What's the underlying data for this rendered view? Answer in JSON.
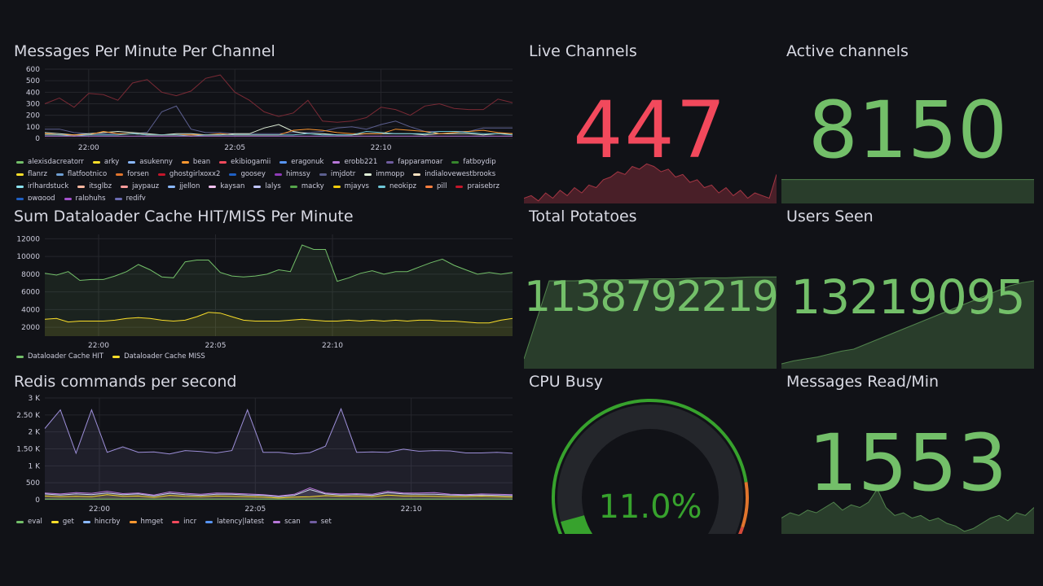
{
  "panels": {
    "messages": {
      "title": "Messages Per Minute Per Channel"
    },
    "cache": {
      "title": "Sum Dataloader Cache HIT/MISS Per Minute"
    },
    "redis": {
      "title": "Redis commands per second"
    },
    "live": {
      "title": "Live Channels",
      "value": "447",
      "color": "#f2495c"
    },
    "active": {
      "title": "Active channels",
      "value": "8150",
      "color": "#73bf69"
    },
    "potatoes": {
      "title": "Total Potatoes",
      "value": "1138792219",
      "color": "#73bf69"
    },
    "users": {
      "title": "Users Seen",
      "value": "13219095",
      "color": "#73bf69"
    },
    "cpu": {
      "title": "CPU Busy",
      "value": "11.0%",
      "percent": 11.0,
      "color": "#37872d"
    },
    "msgread": {
      "title": "Messages Read/Min",
      "value": "1553",
      "color": "#73bf69"
    }
  },
  "chart_data": [
    {
      "id": "messages",
      "type": "line",
      "title": "Messages Per Minute Per Channel",
      "x_ticks": [
        "22:00",
        "22:05",
        "22:10"
      ],
      "x_start_min": -1.5,
      "x_step_min": 0.5,
      "ylim": [
        0,
        600
      ],
      "y_ticks": [
        "0",
        "100",
        "200",
        "300",
        "400",
        "500",
        "600"
      ],
      "legend": [
        [
          "alexisdacreatorr",
          "#73bf69"
        ],
        [
          "arky",
          "#fade2a"
        ],
        [
          "asukenny",
          "#8ab8ff"
        ],
        [
          "bean",
          "#ff9830"
        ],
        [
          "ekibiogamii",
          "#f2495c"
        ],
        [
          "eragonuk",
          "#5794f2"
        ],
        [
          "erobb221",
          "#b877d9"
        ],
        [
          "fapparamoar",
          "#705da0"
        ],
        [
          "fatboydip",
          "#37872d"
        ],
        [
          "flanrz",
          "#fade2a"
        ],
        [
          "flatfootnico",
          "#6e9fd3"
        ],
        [
          "forsen",
          "#e0752d"
        ],
        [
          "ghostgirlxoxx2",
          "#c4162a"
        ],
        [
          "goosey",
          "#1f60c4"
        ],
        [
          "himssy",
          "#8f3bb8"
        ],
        [
          "imjdotr",
          "#5c5f8f"
        ],
        [
          "immopp",
          "#e0f0d8"
        ],
        [
          "indialovewestbrooks",
          "#fce2c2"
        ],
        [
          "irlhardstuck",
          "#8be3f0"
        ],
        [
          "itsglbz",
          "#ffb8a0"
        ],
        [
          "jaypauz",
          "#ff9c9c"
        ],
        [
          "jjellon",
          "#8ab8ff"
        ],
        [
          "kaysan",
          "#f5c2f0"
        ],
        [
          "lalys",
          "#c0c5ff"
        ],
        [
          "macky",
          "#56a64b"
        ],
        [
          "mjayvs",
          "#f2cc0c"
        ],
        [
          "neokipz",
          "#6ec7d8"
        ],
        [
          "pill",
          "#ff7f3f"
        ],
        [
          "praisebrz",
          "#c4162a"
        ],
        [
          "pwgood",
          "#1f60c4"
        ],
        [
          "ralphuhs",
          "#a352cc"
        ],
        [
          "redify",
          "#6b6bb2"
        ]
      ],
      "series": [
        {
          "name": "ghostgirlxoxx2",
          "color": "#7a2a35",
          "values": [
            300,
            350,
            270,
            390,
            380,
            330,
            480,
            510,
            400,
            370,
            410,
            520,
            550,
            400,
            330,
            230,
            190,
            220,
            330,
            150,
            140,
            150,
            180,
            270,
            250,
            200,
            280,
            300,
            260,
            250,
            250,
            340,
            310
          ]
        },
        {
          "name": "imjdotr",
          "color": "#5c5f8f",
          "values": [
            80,
            80,
            50,
            40,
            40,
            40,
            40,
            50,
            230,
            280,
            80,
            50,
            50,
            40,
            40,
            40,
            40,
            50,
            50,
            60,
            90,
            100,
            80,
            120,
            150,
            100,
            60,
            60,
            60,
            60,
            90,
            90,
            90
          ]
        },
        {
          "name": "immopp",
          "color": "#e0f0d8",
          "values": [
            50,
            40,
            30,
            40,
            50,
            60,
            50,
            40,
            30,
            40,
            40,
            30,
            30,
            40,
            40,
            90,
            120,
            60,
            40,
            40,
            30,
            30,
            40,
            40,
            40,
            40,
            30,
            40,
            40,
            40,
            30,
            40,
            40
          ]
        },
        {
          "name": "bean",
          "color": "#ff9830",
          "values": [
            40,
            30,
            30,
            30,
            60,
            40,
            40,
            30,
            30,
            30,
            30,
            30,
            40,
            30,
            30,
            30,
            30,
            70,
            80,
            70,
            50,
            40,
            40,
            40,
            80,
            70,
            60,
            40,
            50,
            60,
            70,
            50,
            40
          ]
        },
        {
          "name": "neokipz",
          "color": "#6ec7d8",
          "values": [
            30,
            30,
            20,
            30,
            30,
            30,
            40,
            30,
            30,
            30,
            20,
            30,
            30,
            30,
            30,
            30,
            30,
            30,
            40,
            30,
            30,
            30,
            60,
            50,
            40,
            40,
            40,
            60,
            60,
            50,
            40,
            40,
            30
          ]
        },
        {
          "name": "erobb221",
          "color": "#b877d9",
          "values": [
            20,
            20,
            20,
            20,
            20,
            20,
            20,
            20,
            20,
            20,
            20,
            20,
            20,
            20,
            20,
            20,
            20,
            20,
            20,
            20,
            20,
            20,
            20,
            20,
            20,
            20,
            20,
            20,
            20,
            20,
            20,
            20,
            20
          ]
        }
      ]
    },
    {
      "id": "cache",
      "type": "area",
      "title": "Sum Dataloader Cache HIT/MISS Per Minute",
      "x_ticks": [
        "22:00",
        "22:05",
        "22:10"
      ],
      "x_start_min": -2.3,
      "x_step_min": 0.5,
      "ylim": [
        1000,
        12500
      ],
      "y_ticks": [
        "2000",
        "4000",
        "6000",
        "8000",
        "10000",
        "12000"
      ],
      "legend": [
        [
          "Dataloader Cache HIT",
          "#73bf69"
        ],
        [
          "Dataloader Cache MISS",
          "#fade2a"
        ]
      ],
      "series": [
        {
          "name": "Dataloader Cache HIT",
          "color": "#73bf69",
          "values": [
            8100,
            7900,
            8300,
            7300,
            7400,
            7400,
            7800,
            8300,
            9100,
            8500,
            7700,
            7600,
            9400,
            9600,
            9600,
            8200,
            7800,
            7700,
            7800,
            8000,
            8500,
            8300,
            11300,
            10800,
            10800,
            7200,
            7600,
            8100,
            8400,
            8000,
            8300,
            8300,
            8800,
            9300,
            9700,
            9000,
            8500,
            8000,
            8200,
            8000,
            8200
          ]
        },
        {
          "name": "Dataloader Cache MISS",
          "color": "#fade2a",
          "values": [
            2900,
            3000,
            2600,
            2700,
            2700,
            2700,
            2800,
            3000,
            3100,
            3000,
            2800,
            2700,
            2800,
            3200,
            3700,
            3600,
            3200,
            2800,
            2700,
            2700,
            2700,
            2800,
            2900,
            2800,
            2700,
            2700,
            2800,
            2700,
            2800,
            2700,
            2800,
            2700,
            2800,
            2800,
            2700,
            2700,
            2600,
            2500,
            2500,
            2800,
            3000
          ]
        }
      ]
    },
    {
      "id": "redis",
      "type": "area",
      "title": "Redis commands per second",
      "x_ticks": [
        "22:00",
        "22:05",
        "22:10"
      ],
      "x_start_min": -1.75,
      "x_step_min": 0.5,
      "ylim": [
        0,
        3000
      ],
      "y_ticks": [
        "0",
        "500",
        "1 K",
        "1.50 K",
        "2 K",
        "2.50 K",
        "3 K"
      ],
      "legend": [
        [
          "eval",
          "#73bf69"
        ],
        [
          "get",
          "#fade2a"
        ],
        [
          "hincrby",
          "#8ab8ff"
        ],
        [
          "hmget",
          "#ff9830"
        ],
        [
          "incr",
          "#f2495c"
        ],
        [
          "latency|latest",
          "#5794f2"
        ],
        [
          "scan",
          "#b877d9"
        ],
        [
          "set",
          "#705da0"
        ]
      ],
      "series": [
        {
          "name": "set",
          "color": "#9d8fd9",
          "values": [
            2100,
            2650,
            1370,
            2650,
            1400,
            1560,
            1400,
            1410,
            1350,
            1450,
            1420,
            1380,
            1450,
            2650,
            1400,
            1400,
            1350,
            1390,
            1580,
            2680,
            1400,
            1410,
            1400,
            1490,
            1430,
            1450,
            1440,
            1380,
            1380,
            1400,
            1370
          ]
        },
        {
          "name": "scan",
          "color": "#b877d9",
          "values": [
            200,
            170,
            210,
            190,
            250,
            180,
            200,
            140,
            230,
            190,
            160,
            200,
            190,
            170,
            150,
            110,
            160,
            350,
            200,
            170,
            180,
            160,
            250,
            200,
            200,
            210,
            160,
            150,
            170,
            160,
            150
          ]
        },
        {
          "name": "hincrby",
          "color": "#d0d8f0",
          "values": [
            170,
            140,
            170,
            150,
            200,
            150,
            170,
            110,
            190,
            150,
            130,
            160,
            160,
            140,
            130,
            90,
            130,
            300,
            170,
            140,
            150,
            130,
            210,
            170,
            160,
            160,
            140,
            130,
            140,
            130,
            120
          ]
        },
        {
          "name": "get",
          "color": "#fade2a",
          "values": [
            110,
            90,
            100,
            90,
            150,
            100,
            110,
            70,
            130,
            100,
            90,
            110,
            100,
            90,
            80,
            50,
            80,
            90,
            120,
            100,
            100,
            90,
            140,
            110,
            110,
            100,
            90,
            90,
            100,
            90,
            80
          ]
        },
        {
          "name": "eval",
          "color": "#73bf69",
          "values": [
            20,
            20,
            20,
            20,
            20,
            20,
            20,
            20,
            20,
            20,
            20,
            20,
            20,
            20,
            20,
            20,
            20,
            20,
            20,
            20,
            20,
            20,
            20,
            20,
            20,
            20,
            20,
            20,
            20,
            20,
            20
          ]
        }
      ]
    }
  ],
  "sparklines": {
    "live": [
      0.1,
      0.15,
      0.05,
      0.2,
      0.1,
      0.25,
      0.15,
      0.3,
      0.2,
      0.35,
      0.3,
      0.45,
      0.5,
      0.6,
      0.55,
      0.7,
      0.65,
      0.75,
      0.7,
      0.6,
      0.65,
      0.5,
      0.55,
      0.4,
      0.45,
      0.3,
      0.35,
      0.2,
      0.3,
      0.15,
      0.25,
      0.1,
      0.2,
      0.15,
      0.1,
      0.55
    ],
    "active": [
      0.3,
      0.3,
      0.3,
      0.3,
      0.3,
      0.3
    ],
    "potatoes": [
      0.1,
      0.9,
      0.9,
      0.91,
      0.91,
      0.92,
      0.92,
      0.93,
      0.93,
      0.94,
      0.94
    ],
    "users": [
      0.05,
      0.08,
      0.1,
      0.12,
      0.15,
      0.18,
      0.2,
      0.25,
      0.3,
      0.35,
      0.4,
      0.45,
      0.5,
      0.55,
      0.6,
      0.65,
      0.7,
      0.75,
      0.8,
      0.85,
      0.88,
      0.9
    ],
    "msgread": [
      0.3,
      0.4,
      0.35,
      0.45,
      0.4,
      0.5,
      0.6,
      0.45,
      0.55,
      0.5,
      0.6,
      0.85,
      0.5,
      0.35,
      0.4,
      0.3,
      0.35,
      0.25,
      0.3,
      0.2,
      0.15,
      0.05,
      0.1,
      0.2,
      0.3,
      0.35,
      0.25,
      0.4,
      0.35,
      0.5
    ]
  }
}
